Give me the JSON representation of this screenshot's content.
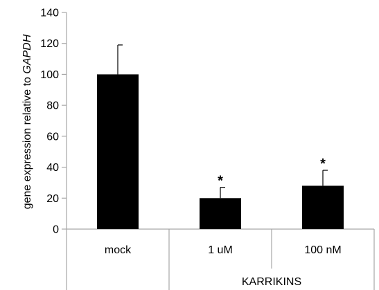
{
  "chart_data": {
    "type": "bar",
    "categories": [
      "mock",
      "1 uM",
      "100 nM"
    ],
    "group_labels": [
      {
        "label": "KARRIKINS",
        "categories": [
          "1 uM",
          "100 nM"
        ]
      }
    ],
    "values": [
      100,
      20,
      28
    ],
    "errors": [
      19,
      7,
      10
    ],
    "annotations": [
      "",
      "*",
      "*"
    ],
    "ylabel_prefix": "gene expression relative to ",
    "ylabel_gene": "GAPDH",
    "xlabel": "",
    "ylim": [
      0,
      140
    ],
    "yticks": [
      0,
      20,
      40,
      60,
      80,
      100,
      120,
      140
    ],
    "bar_color": "#000000",
    "axis_color": "#a6a6a6",
    "grid": false,
    "legend": "none"
  }
}
